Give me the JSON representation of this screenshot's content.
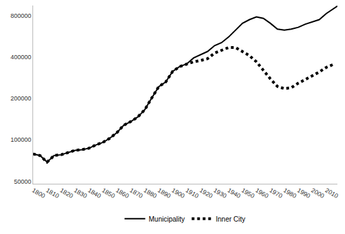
{
  "chart_data": {
    "type": "line",
    "log": "y",
    "grid": false,
    "legend": "bottom",
    "x": [
      1800,
      1805,
      1808,
      1810,
      1812,
      1815,
      1820,
      1825,
      1830,
      1835,
      1840,
      1845,
      1850,
      1855,
      1860,
      1865,
      1870,
      1875,
      1880,
      1885,
      1890,
      1895,
      1900,
      1905,
      1910,
      1915,
      1920,
      1925,
      1930,
      1935,
      1940,
      1945,
      1950,
      1955,
      1960,
      1965,
      1970,
      1975,
      1980,
      1985,
      1990,
      1995,
      2000,
      2005,
      2010,
      2015,
      2018
    ],
    "series": [
      {
        "name": "Municipality",
        "color": "#000000",
        "line_style": "solid",
        "values": [
          79000,
          77000,
          72000,
          69000,
          72000,
          77000,
          78000,
          81000,
          84000,
          85000,
          87000,
          92000,
          96000,
          103000,
          113000,
          128000,
          136000,
          147000,
          166000,
          202000,
          244000,
          264000,
          315000,
          342000,
          357000,
          395000,
          418000,
          440000,
          485000,
          510000,
          560000,
          630000,
          705000,
          750000,
          785000,
          765000,
          705000,
          640000,
          630000,
          640000,
          660000,
          695000,
          725000,
          750000,
          830000,
          900000,
          940000
        ]
      },
      {
        "name": "Inner City",
        "color": "#000000",
        "line_style": "dotted",
        "values": [
          79000,
          77000,
          72000,
          69000,
          72000,
          77000,
          78000,
          81000,
          84000,
          85000,
          87000,
          92000,
          96000,
          103000,
          113000,
          128000,
          136000,
          147000,
          166000,
          202000,
          244000,
          264000,
          315000,
          342000,
          357000,
          370000,
          378000,
          390000,
          428000,
          450000,
          470000,
          470000,
          440000,
          410000,
          370000,
          320000,
          278000,
          245000,
          236000,
          240000,
          259000,
          275000,
          292000,
          312000,
          337000,
          354000,
          null
        ]
      }
    ],
    "xlim": [
      1800,
      2018
    ],
    "xticks": [
      1800,
      1810,
      1820,
      1830,
      1840,
      1850,
      1860,
      1870,
      1880,
      1890,
      1900,
      1910,
      1920,
      1930,
      1940,
      1950,
      1960,
      1970,
      1980,
      1990,
      2000,
      2010
    ],
    "ylim": [
      48000,
      950000
    ],
    "yticks": [
      50000,
      100000,
      200000,
      400000,
      800000
    ]
  }
}
